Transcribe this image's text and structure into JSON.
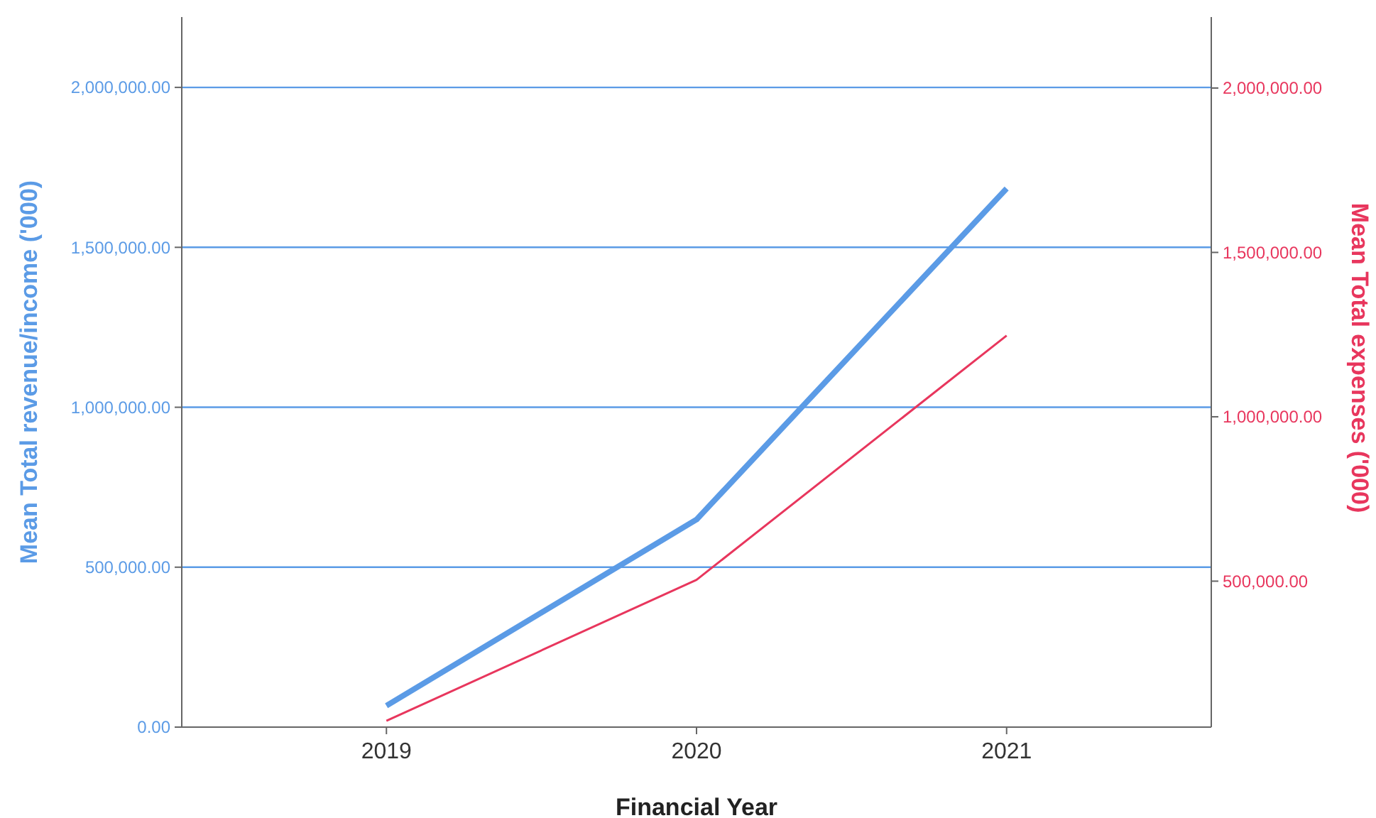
{
  "chart_data": {
    "type": "line",
    "xlabel": "Financial Year",
    "ylabel": "Mean Total revenue/income ('000)",
    "y2label": "Mean Total expenses ('000)",
    "categories": [
      "2019",
      "2020",
      "2021"
    ],
    "series": [
      {
        "color": "#5b9be6",
        "values": [
          67000,
          649000,
          1684000
        ]
      },
      {
        "color": "#e8365d",
        "axis": "y2",
        "values": [
          75000,
          504000,
          1247000
        ]
      }
    ],
    "ylim": [
      0,
      2220000
    ],
    "yticks": [
      {
        "value": 0,
        "label": "0.00"
      },
      {
        "value": 500000,
        "label": "500,000.00"
      },
      {
        "value": 1000000,
        "label": "1,000,000.00"
      },
      {
        "value": 1500000,
        "label": "1,500,000.00"
      },
      {
        "value": 2000000,
        "label": "2,000,000.00"
      }
    ],
    "y2lim": [
      56000,
      2216000
    ],
    "y2ticks": [
      {
        "value": 500000,
        "label": "500,000.00"
      },
      {
        "value": 1000000,
        "label": "1,000,000.00"
      },
      {
        "value": 1500000,
        "label": "1,500,000.00"
      },
      {
        "value": 2000000,
        "label": "2,000,000.00"
      }
    ],
    "grid": "y",
    "marker": "none",
    "line_style": "solid"
  }
}
